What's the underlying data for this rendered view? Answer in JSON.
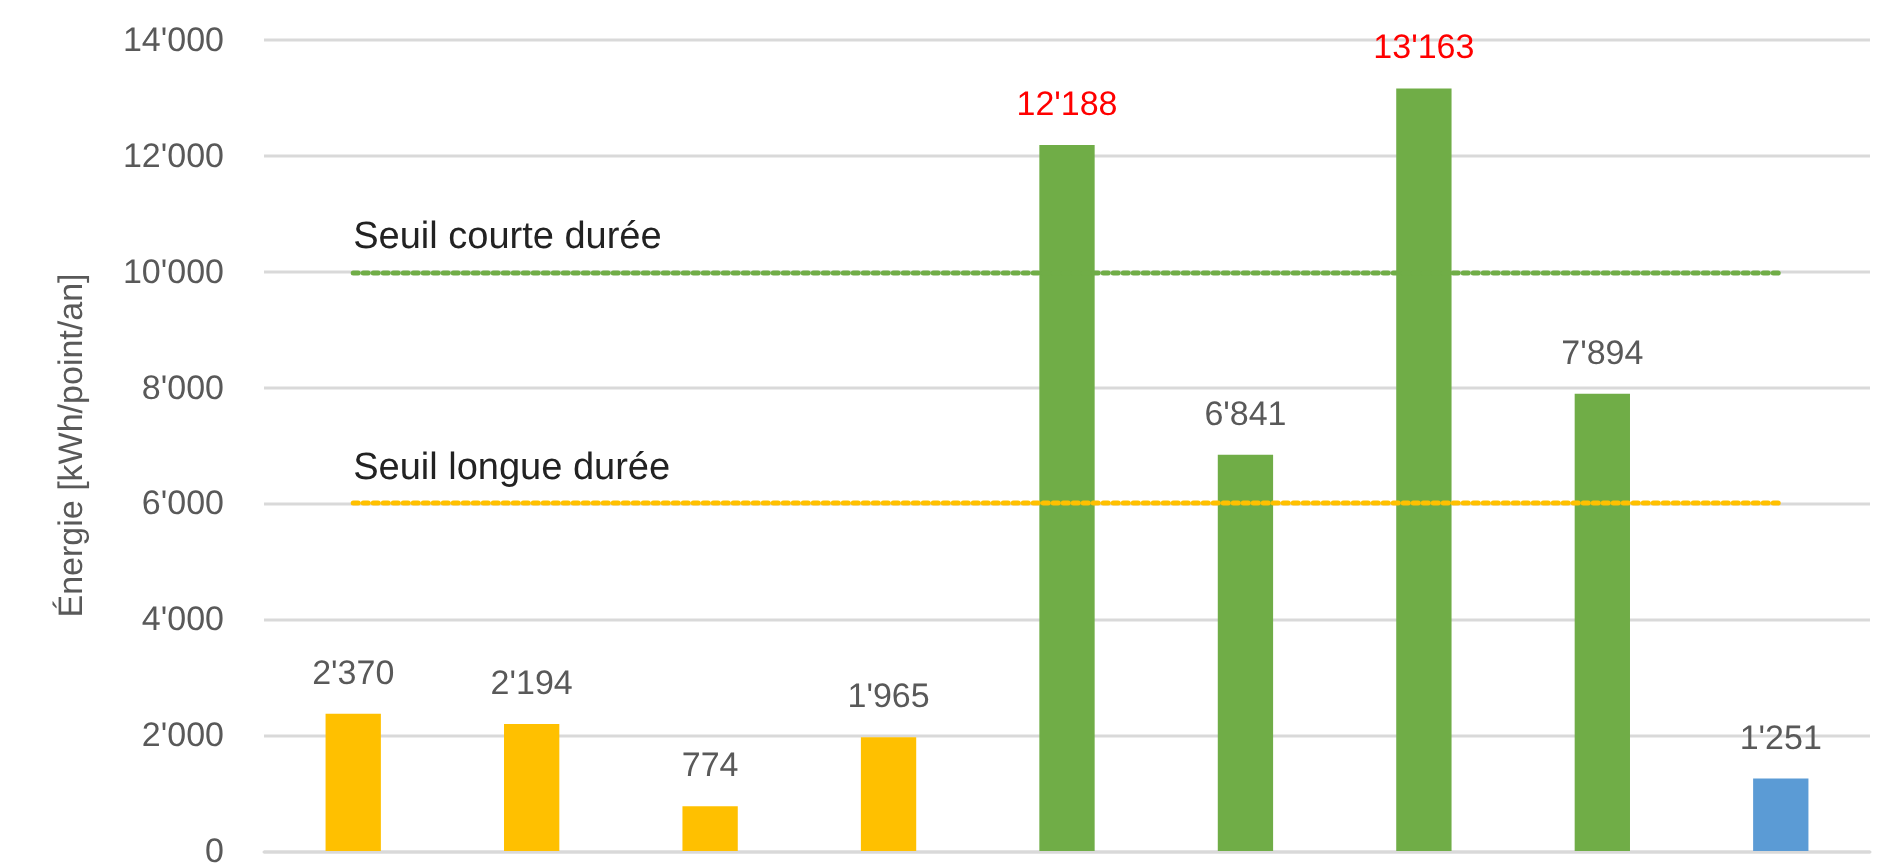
{
  "chart_data": {
    "type": "bar",
    "ylabel": "Énergie [kWh/point/an]",
    "categories": [
      null,
      null,
      null,
      null,
      null,
      null,
      null,
      null,
      null
    ],
    "values": [
      2370,
      2194,
      774,
      1965,
      12188,
      6841,
      13163,
      7894,
      1251
    ],
    "colors": [
      "#ffc000",
      "#ffc000",
      "#ffc000",
      "#ffc000",
      "#70ad47",
      "#70ad47",
      "#70ad47",
      "#70ad47",
      "#5b9bd5"
    ],
    "value_labels": [
      "2'370",
      "2'194",
      "774",
      "1'965",
      "12'188",
      "6'841",
      "13'163",
      "7'894",
      "1'251"
    ],
    "ylim": [
      0,
      14000
    ],
    "yticks": [
      {
        "value": 0,
        "label": "0"
      },
      {
        "value": 2000,
        "label": "2'000"
      },
      {
        "value": 4000,
        "label": "4'000"
      },
      {
        "value": 6000,
        "label": "6'000"
      },
      {
        "value": 8000,
        "label": "8'000"
      },
      {
        "value": 10000,
        "label": "10'000"
      },
      {
        "value": 12000,
        "label": "12'000"
      },
      {
        "value": 14000,
        "label": "14'000"
      }
    ],
    "ref_lines": [
      {
        "axis": "y",
        "value": 10000,
        "label": "Seuil courte durée",
        "color": "#70ad47",
        "line_style": "dotted"
      },
      {
        "axis": "y",
        "value": 6000,
        "label": "Seuil longue durée",
        "color": "#ffc000",
        "line_style": "dotted"
      }
    ],
    "grid": "y"
  }
}
